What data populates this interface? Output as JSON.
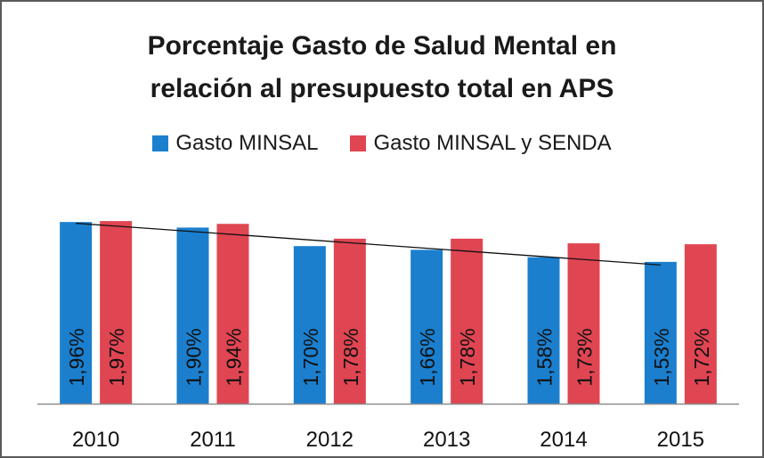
{
  "chart_data": {
    "type": "bar",
    "title_lines": [
      "Porcentaje Gasto de Salud Mental  en",
      "relación al presupuesto total en APS"
    ],
    "categories": [
      "2010",
      "2011",
      "2012",
      "2013",
      "2014",
      "2015"
    ],
    "series": [
      {
        "name": "Gasto MINSAL",
        "color": "#1b7fce",
        "values": [
          1.96,
          1.9,
          1.7,
          1.66,
          1.58,
          1.53
        ],
        "labels": [
          "1,96%",
          "1,90%",
          "1,70%",
          "1,66%",
          "1,58%",
          "1,53%"
        ]
      },
      {
        "name": "Gasto MINSAL y SENDA",
        "color": "#e04552",
        "values": [
          1.97,
          1.94,
          1.78,
          1.78,
          1.73,
          1.72
        ],
        "labels": [
          "1,97%",
          "1,94%",
          "1,78%",
          "1,78%",
          "1,73%",
          "1,72%"
        ]
      }
    ],
    "trendline": {
      "series": "Gasto MINSAL",
      "type": "linear"
    },
    "legend": "top",
    "grid": false,
    "data_label_orientation": "vertical"
  }
}
